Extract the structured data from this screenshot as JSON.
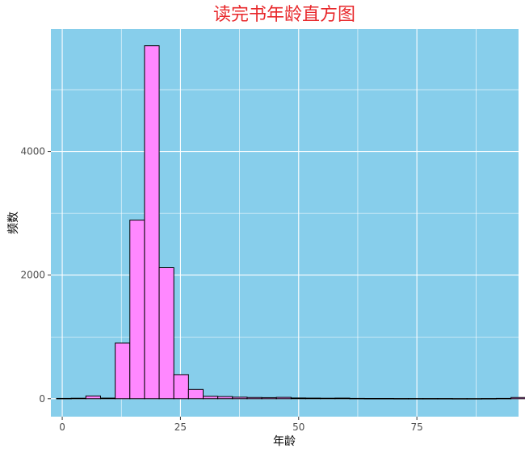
{
  "colors": {
    "panel_bg": "#87CEEB",
    "grid": "#ffffff",
    "bar_fill": "#FF88FF",
    "bar_stroke": "#000000",
    "title": "#E8282B"
  },
  "chart_data": {
    "type": "bar",
    "title": "读完书年龄直方图",
    "xlabel": "年龄",
    "ylabel": "频数",
    "xlim": [
      -2.4,
      96.5
    ],
    "ylim": [
      -290,
      5980
    ],
    "x_ticks": [
      0,
      25,
      50,
      75
    ],
    "x_tick_labels": [
      "0",
      "25",
      "50",
      "75"
    ],
    "y_ticks": [
      0,
      2000,
      4000
    ],
    "y_tick_labels": [
      "0",
      "2000",
      "4000"
    ],
    "grid": true,
    "bin_width": 3.1,
    "bin_start": -1.2,
    "values": [
      5,
      8,
      45,
      10,
      900,
      2890,
      5710,
      2120,
      390,
      150,
      40,
      35,
      25,
      20,
      18,
      22,
      12,
      10,
      8,
      10,
      5,
      4,
      4,
      3,
      3,
      3,
      3,
      2,
      2,
      3,
      5,
      20,
      3,
      2,
      3,
      2,
      15
    ]
  }
}
